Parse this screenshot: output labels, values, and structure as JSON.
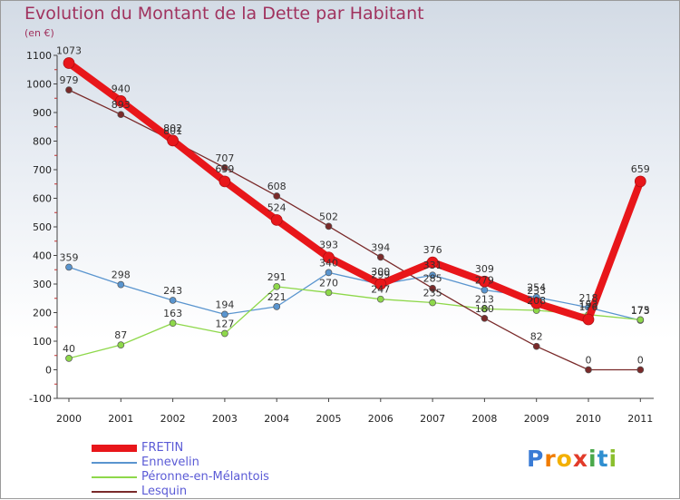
{
  "chart_data": {
    "type": "line",
    "title": "Evolution du Montant de la Dette par Habitant",
    "subtitle": "(en €)",
    "x": [
      "2000",
      "2001",
      "2002",
      "2003",
      "2004",
      "2005",
      "2006",
      "2007",
      "2008",
      "2009",
      "2010",
      "2011"
    ],
    "ylim": [
      -100,
      1100
    ],
    "yticks": [
      -100,
      0,
      100,
      200,
      300,
      400,
      500,
      600,
      700,
      800,
      900,
      1000,
      1100
    ],
    "grid": false,
    "legend_position": "bottom-left",
    "series": [
      {
        "name": "FRETIN",
        "color": "#e8161a",
        "values": [
          1073,
          940,
          802,
          659,
          524,
          393,
          300,
          376,
          309,
          233,
          176,
          659
        ]
      },
      {
        "name": "Ennevelin",
        "color": "#5a95cf",
        "values": [
          359,
          298,
          243,
          194,
          221,
          340,
          299,
          331,
          279,
          254,
          218,
          173
        ]
      },
      {
        "name": "Péronne-en-Mélantois",
        "color": "#8ed84a",
        "values": [
          40,
          87,
          163,
          127,
          291,
          270,
          247,
          235,
          213,
          208,
          193,
          175
        ]
      },
      {
        "name": "Lesquin",
        "color": "#7a2a2a",
        "values": [
          979,
          893,
          801,
          707,
          608,
          502,
          394,
          285,
          180,
          82,
          0,
          0
        ]
      }
    ]
  },
  "logo": {
    "letters": [
      "P",
      "r",
      "o",
      "x",
      "i",
      "t",
      "i"
    ],
    "colors": [
      "#3a7bd5",
      "#f07c00",
      "#f3b000",
      "#e23b2a",
      "#4aa84a",
      "#2f8fd0",
      "#8bbf2e"
    ]
  }
}
